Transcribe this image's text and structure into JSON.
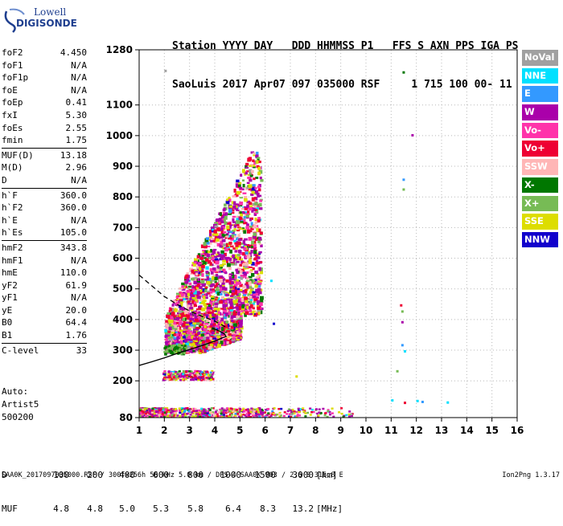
{
  "logo": {
    "line1": "Lowell",
    "line2": "DIGISONDE"
  },
  "header": {
    "line1": "Station YYYY DAY   DDD HHMMSS P1   FFS S AXN PPS IGA PS",
    "line2": "SaoLuis 2017 Apr07 097 035000 RSF     1 715 100 00- 11"
  },
  "params": {
    "group1": [
      {
        "label": "foF2",
        "value": "4.450"
      },
      {
        "label": "foF1",
        "value": "N/A"
      },
      {
        "label": "foF1p",
        "value": "N/A"
      },
      {
        "label": "foE",
        "value": "N/A"
      },
      {
        "label": "foEp",
        "value": "0.41"
      },
      {
        "label": "fxI",
        "value": "5.30"
      },
      {
        "label": "foEs",
        "value": "2.55"
      },
      {
        "label": "fmin",
        "value": "1.75"
      }
    ],
    "group2": [
      {
        "label": "MUF(D)",
        "value": "13.18"
      },
      {
        "label": "M(D)",
        "value": "2.96"
      },
      {
        "label": "D",
        "value": "N/A"
      }
    ],
    "group3": [
      {
        "label": "h`F",
        "value": "360.0"
      },
      {
        "label": "h`F2",
        "value": "360.0"
      },
      {
        "label": "h`E",
        "value": "N/A"
      },
      {
        "label": "h`Es",
        "value": "105.0"
      }
    ],
    "group4": [
      {
        "label": "hmF2",
        "value": "343.8"
      },
      {
        "label": "hmF1",
        "value": "N/A"
      },
      {
        "label": "hmE",
        "value": "110.0"
      },
      {
        "label": "yF2",
        "value": "61.9"
      },
      {
        "label": "yF1",
        "value": "N/A"
      },
      {
        "label": "yE",
        "value": "20.0"
      },
      {
        "label": "B0",
        "value": "64.4"
      },
      {
        "label": "B1",
        "value": "1.76"
      }
    ],
    "group5": [
      {
        "label": "C-level",
        "value": "33"
      }
    ]
  },
  "auto": {
    "line1": "Auto:",
    "line2": "Artist5",
    "line3": "500200"
  },
  "muf_table": {
    "d_label": "D",
    "d_values": [
      "100",
      "200",
      "400",
      "600",
      "800",
      "1000",
      "1500",
      "3000"
    ],
    "d_unit": "[km]",
    "muf_label": "MUF",
    "muf_values": [
      "4.8",
      "4.8",
      "5.0",
      "5.3",
      "5.8",
      "6.4",
      "8.3",
      "13.2"
    ],
    "muf_unit": "[MHz]"
  },
  "footer": "SAA0K_2017097035000.RSF / 300fx256h 50 kHz 5.0 km / DPS-4 SAA0K 903 / 2.6 S 315.8 E",
  "version": "Ion2Png 1.3.17",
  "legend": [
    {
      "label": "NoVal",
      "color": "#a0a0a0"
    },
    {
      "label": "NNE",
      "color": "#00e0ff"
    },
    {
      "label": "E",
      "color": "#3399ff"
    },
    {
      "label": "W",
      "color": "#aa00aa"
    },
    {
      "label": "Vo-",
      "color": "#ff33aa"
    },
    {
      "label": "Vo+",
      "color": "#ee0033"
    },
    {
      "label": "SSW",
      "color": "#ffb6b6"
    },
    {
      "label": "X-",
      "color": "#007700"
    },
    {
      "label": "X+",
      "color": "#77bb55"
    },
    {
      "label": "SSE",
      "color": "#dddd00"
    },
    {
      "label": "NNW",
      "color": "#1100cc"
    }
  ],
  "chart_data": {
    "type": "scatter",
    "xlim": [
      1,
      16
    ],
    "ylim": [
      80,
      1280
    ],
    "x_ticks": [
      1,
      2,
      3,
      4,
      5,
      6,
      7,
      8,
      9,
      10,
      11,
      12,
      13,
      14,
      15,
      16
    ],
    "y_ticks": [
      80,
      200,
      300,
      400,
      500,
      600,
      700,
      800,
      900,
      1000,
      1100,
      1280
    ],
    "grid": "dotted",
    "traces": [
      {
        "name": "profile",
        "style": "solid",
        "points": [
          [
            1.0,
            250
          ],
          [
            1.5,
            262
          ],
          [
            2.0,
            275
          ],
          [
            2.5,
            289
          ],
          [
            3.0,
            302
          ],
          [
            3.5,
            315
          ],
          [
            4.0,
            330
          ],
          [
            4.3,
            340
          ],
          [
            4.45,
            343.8
          ],
          [
            4.4,
            352
          ],
          [
            4.2,
            362
          ],
          [
            3.9,
            372
          ]
        ]
      },
      {
        "name": "o-trace",
        "style": "dashed",
        "points": [
          [
            1.0,
            545
          ],
          [
            1.5,
            510
          ],
          [
            2.0,
            475
          ],
          [
            2.5,
            450
          ],
          [
            3.0,
            428
          ],
          [
            3.5,
            410
          ],
          [
            4.0,
            395
          ],
          [
            4.45,
            375
          ]
        ]
      }
    ],
    "echo_regions": [
      {
        "freq": [
          2.0,
          5.8
        ],
        "height": [
          280,
          950
        ],
        "density": "high"
      },
      {
        "freq": [
          1.0,
          9.5
        ],
        "height": [
          82,
          115
        ],
        "density": "medium"
      },
      {
        "freq": [
          1.9,
          3.9
        ],
        "height": [
          205,
          235
        ],
        "density": "medium"
      }
    ],
    "isolated_points": [
      [
        2.0,
        1215,
        "#a0a0a0"
      ],
      [
        11.45,
        1210,
        "#007700"
      ],
      [
        11.8,
        1005,
        "#aa00aa"
      ],
      [
        11.45,
        860,
        "#3399ff"
      ],
      [
        11.45,
        828,
        "#77bb55"
      ],
      [
        6.2,
        530,
        "#00e0ff"
      ],
      [
        11.35,
        450,
        "#ee0033"
      ],
      [
        11.4,
        430,
        "#77bb55"
      ],
      [
        11.4,
        395,
        "#aa00aa"
      ],
      [
        6.3,
        390,
        "#1100cc"
      ],
      [
        11.4,
        320,
        "#3399ff"
      ],
      [
        11.5,
        300,
        "#00e0ff"
      ],
      [
        11.2,
        235,
        "#77bb55"
      ],
      [
        7.2,
        218,
        "#dddd00"
      ],
      [
        11.0,
        140,
        "#00e0ff"
      ],
      [
        12.0,
        138,
        "#00e0ff"
      ],
      [
        12.2,
        135,
        "#3399ff"
      ],
      [
        13.2,
        133,
        "#00e0ff"
      ],
      [
        11.5,
        132,
        "#ee0033"
      ]
    ]
  }
}
